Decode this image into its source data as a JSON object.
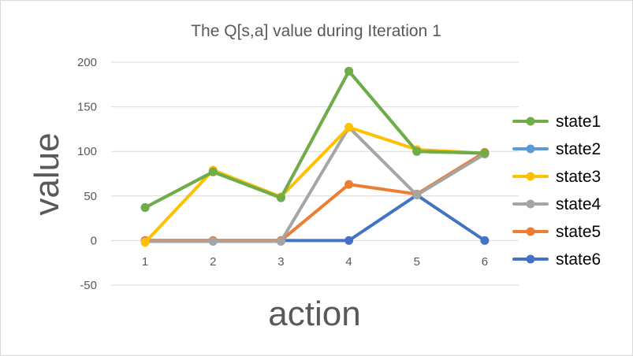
{
  "chart_data": {
    "type": "line",
    "title": "The Q[s,a] value during Iteration 1",
    "xlabel": "action",
    "ylabel": "value",
    "x": [
      1,
      2,
      3,
      4,
      5,
      6
    ],
    "x_tick_labels": [
      "1",
      "2",
      "3",
      "4",
      "5",
      "6"
    ],
    "y_ticks": [
      -50,
      0,
      50,
      100,
      150,
      200
    ],
    "y_tick_labels": [
      "-50",
      "0",
      "50",
      "100",
      "150",
      "200"
    ],
    "ylim": [
      -50,
      200
    ],
    "grid": true,
    "legend_position": "right",
    "series": [
      {
        "name": "state6",
        "color": "#4472C4",
        "values": [
          0,
          0,
          0,
          0,
          51,
          0
        ]
      },
      {
        "name": "state5",
        "color": "#ED7D31",
        "values": [
          0,
          0,
          0,
          63,
          52,
          99
        ]
      },
      {
        "name": "state4",
        "color": "#A5A5A5",
        "values": [
          -1,
          -1,
          -1,
          127,
          51,
          97
        ]
      },
      {
        "name": "state3",
        "color": "#FFC000",
        "values": [
          -2,
          79,
          49,
          127,
          102,
          98
        ]
      },
      {
        "name": "state2",
        "color": "#5B9BD5",
        "values": [
          37,
          77,
          48,
          190,
          100,
          98
        ]
      },
      {
        "name": "state1",
        "color": "#70AD47",
        "values": [
          37,
          77,
          48,
          190,
          100,
          98
        ]
      }
    ],
    "legend_order": [
      "state1",
      "state2",
      "state3",
      "state4",
      "state5",
      "state6"
    ]
  }
}
